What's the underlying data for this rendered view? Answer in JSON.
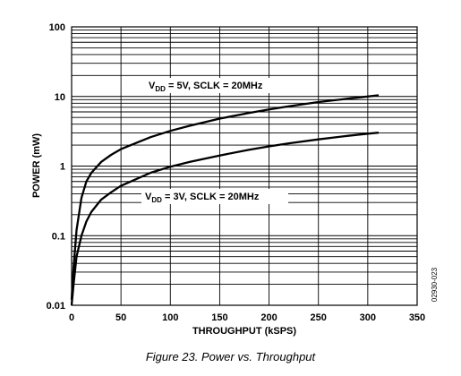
{
  "chart_data": {
    "type": "line",
    "xlabel": "THROUGHPUT (kSPS)",
    "ylabel": "POWER (mW)",
    "xlim": [
      0,
      350
    ],
    "ylim": [
      0.01,
      100
    ],
    "yscale": "log",
    "grid": true,
    "x_ticks": [
      "0",
      "50",
      "100",
      "150",
      "200",
      "250",
      "300",
      "350"
    ],
    "y_ticks": [
      "0.01",
      "0.1",
      "1",
      "10",
      "100"
    ],
    "series": [
      {
        "name": "VDD = 5V, SCLK = 20MHz",
        "label_main": "V",
        "label_sub": "DD",
        "label_rest": " = 5V, SCLK = 20MHz",
        "x": [
          0,
          2,
          5,
          10,
          15,
          20,
          30,
          40,
          50,
          60,
          80,
          100,
          120,
          150,
          180,
          200,
          220,
          250,
          280,
          300,
          311
        ],
        "y": [
          0.012,
          0.035,
          0.12,
          0.35,
          0.6,
          0.8,
          1.15,
          1.45,
          1.75,
          2.0,
          2.6,
          3.2,
          3.8,
          4.8,
          5.8,
          6.5,
          7.2,
          8.3,
          9.3,
          10.0,
          10.4
        ]
      },
      {
        "name": "VDD = 3V, SCLK = 20MHz",
        "label_main": "V",
        "label_sub": "DD",
        "label_rest": " = 3V, SCLK = 20MHz",
        "x": [
          0,
          2,
          5,
          10,
          15,
          20,
          30,
          40,
          50,
          60,
          80,
          100,
          120,
          150,
          180,
          200,
          220,
          250,
          280,
          300,
          311
        ],
        "y": [
          0.01,
          0.02,
          0.05,
          0.1,
          0.16,
          0.22,
          0.33,
          0.42,
          0.52,
          0.6,
          0.8,
          0.98,
          1.15,
          1.42,
          1.72,
          1.92,
          2.12,
          2.42,
          2.72,
          2.92,
          3.02
        ]
      }
    ]
  },
  "figure_code": "02930-023",
  "caption": "Figure 23. Power vs. Throughput"
}
